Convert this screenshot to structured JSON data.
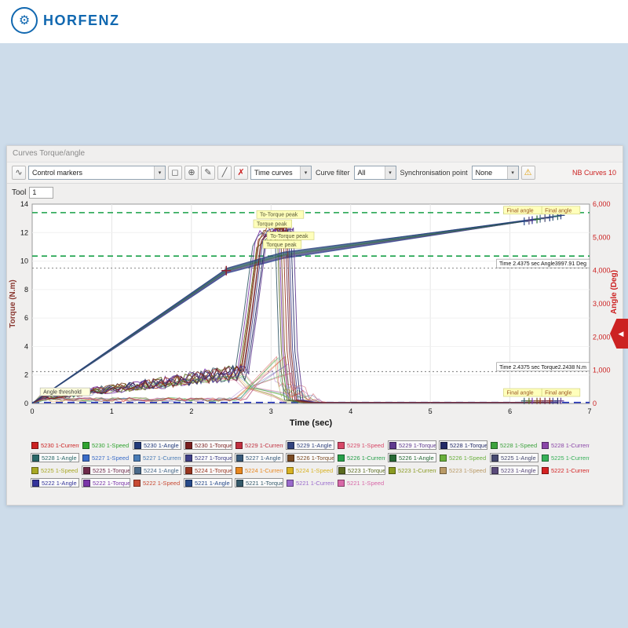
{
  "brand": {
    "name": "HORFENZ",
    "icon": "⚙",
    "color": "#1168b0"
  },
  "window": {
    "title": "Curves Torque/angle",
    "tool_label": "Tool",
    "tool_value": "1",
    "side_tag_arrow": "◀",
    "toolbar": {
      "control_markers": "Control markers",
      "time_curves": "Time curves",
      "curve_filter_label": "Curve filter",
      "curve_filter_value": "All",
      "sync_label": "Synchronisation point",
      "sync_value": "None",
      "nb_curves": "NB Curves 10",
      "icons": {
        "wave": "∿",
        "marquee": "◻",
        "zoom": "⊕",
        "pencil": "✎",
        "line": "╱",
        "delete": "✗",
        "warning": "⚠",
        "arrow": "▾"
      }
    }
  },
  "chart_data": {
    "type": "line",
    "title": "",
    "xlabel": "Time (sec)",
    "x_min": 0,
    "x_max": 7,
    "x_ticks": [
      0,
      1,
      2,
      3,
      4,
      5,
      6,
      7
    ],
    "y_left": {
      "label": "Torque (N.m)",
      "min": 0,
      "max": 14,
      "ticks": [
        0,
        2,
        4,
        6,
        8,
        10,
        12,
        14
      ],
      "color": "#8a3a33"
    },
    "y_right": {
      "label": "Angle (Deg)",
      "min": 0,
      "max": 6000,
      "ticks": [
        0,
        1000,
        2000,
        3000,
        4000,
        5000,
        6000
      ],
      "color": "#cc2222"
    },
    "limits": [
      {
        "name": "torque-max-limit-line",
        "v": 13.4,
        "color": "#18a048",
        "dash": "7 5"
      },
      {
        "name": "torque-min-limit-line",
        "v": 10.35,
        "color": "#18a048",
        "dash": "7 5"
      },
      {
        "name": "angle-baseline-line",
        "v": 0.07,
        "color": "#2233bb",
        "dash": "9 6"
      }
    ],
    "cursors": [
      {
        "v": 9.5,
        "label": "Time 2.4375 sec Angle3997.91 Deg"
      },
      {
        "v": 2.2438,
        "label": "Time 2.4375 sec Torque2.2438 N.m"
      }
    ],
    "cursor_point": {
      "t": 2.4375,
      "v": 9.33
    },
    "peak_labels": [
      {
        "text": "To-Torque peak",
        "t": 2.82,
        "v": 13.05
      },
      {
        "text": "Torque peak",
        "t": 2.78,
        "v": 12.4
      },
      {
        "text": "To-Torque peak",
        "t": 2.95,
        "v": 11.55
      },
      {
        "text": "Torque peak",
        "t": 2.9,
        "v": 10.95
      }
    ],
    "final_labels_top": [
      {
        "text": "Final angle",
        "t": 5.92,
        "v": 13.35
      },
      {
        "text": "Final angle",
        "t": 6.4,
        "v": 13.35
      }
    ],
    "final_labels_bottom": [
      {
        "text": "Final angle",
        "t": 5.92,
        "v": 0.55
      },
      {
        "text": "Final angle",
        "t": 6.4,
        "v": 0.55
      }
    ],
    "threshold_label": {
      "text": "Angle threshold",
      "t": 0.1,
      "v": 0.6
    },
    "bolts": [
      {
        "id": "5221",
        "t_rise": 2.55,
        "peak": 12.0,
        "t_drop": 3.05,
        "t_final": 6.18,
        "final_angle": 5480,
        "torque": "#355a6a",
        "angle": "#274a8a",
        "current": "#9a6acc",
        "speed": "#d868a8"
      },
      {
        "id": "5222",
        "t_rise": 2.58,
        "peak": 12.3,
        "t_drop": 3.1,
        "t_final": 6.28,
        "final_angle": 5520,
        "torque": "#7a35a8",
        "angle": "#34349a",
        "current": "#d42222",
        "speed": "#c84a33"
      },
      {
        "id": "5223",
        "t_rise": 2.6,
        "peak": 11.9,
        "t_drop": 3.08,
        "t_final": 6.24,
        "final_angle": 5500,
        "torque": "#5a6a1f",
        "angle": "#5a4a7a",
        "current": "#8a9a22",
        "speed": "#b99a66"
      },
      {
        "id": "5224",
        "t_rise": 2.62,
        "peak": 12.5,
        "t_drop": 3.15,
        "t_final": 6.38,
        "final_angle": 5560,
        "torque": "#99351f",
        "angle": "#4a6a8a",
        "current": "#e8871f",
        "speed": "#d8b222"
      },
      {
        "id": "5225",
        "t_rise": 2.65,
        "peak": 12.2,
        "t_drop": 3.18,
        "t_final": 6.44,
        "final_angle": 5580,
        "torque": "#6e2a4a",
        "angle": "#474a70",
        "current": "#36b058",
        "speed": "#a8a824"
      },
      {
        "id": "5226",
        "t_rise": 2.63,
        "peak": 12.4,
        "t_drop": 3.12,
        "t_final": 6.34,
        "final_angle": 5540,
        "torque": "#7a4a22",
        "angle": "#276a35",
        "current": "#27a04a",
        "speed": "#6ab03c"
      },
      {
        "id": "5227",
        "t_rise": 2.68,
        "peak": 12.6,
        "t_drop": 3.22,
        "t_final": 6.54,
        "final_angle": 5620,
        "torque": "#3f3f88",
        "angle": "#375a7a",
        "current": "#4a7cb5",
        "speed": "#3a6cc8"
      },
      {
        "id": "5228",
        "t_rise": 2.7,
        "peak": 12.1,
        "t_drop": 3.25,
        "t_final": 6.6,
        "final_angle": 5640,
        "torque": "#232a66",
        "angle": "#2a6868",
        "current": "#8a46a8",
        "speed": "#3da23d"
      },
      {
        "id": "5229",
        "t_rise": 2.72,
        "peak": 12.35,
        "t_drop": 3.28,
        "t_final": 6.64,
        "final_angle": 5660,
        "torque": "#5f3a8f",
        "angle": "#31437f",
        "current": "#c03040",
        "speed": "#d84868"
      },
      {
        "id": "5230",
        "t_rise": 2.66,
        "peak": 12.45,
        "t_drop": 3.2,
        "t_final": 6.5,
        "final_angle": 5600,
        "torque": "#7a1f1f",
        "angle": "#223a7a",
        "current": "#cc2222",
        "speed": "#2fa32f"
      }
    ]
  },
  "legend": {
    "entries": [
      {
        "label": "5230 1-Current",
        "color": "#cc2222",
        "boxed": false
      },
      {
        "label": "5230 1-Speed",
        "color": "#2fa32f",
        "boxed": false
      },
      {
        "label": "5230 1-Angle",
        "color": "#223a7a",
        "boxed": true
      },
      {
        "label": "5230 1-Torque",
        "color": "#7a1f1f",
        "boxed": true
      },
      {
        "label": "5229 1-Current",
        "color": "#c03040",
        "boxed": false
      },
      {
        "label": "5229 1-Angle",
        "color": "#31437f",
        "boxed": true
      },
      {
        "label": "5229 1-Speed",
        "color": "#d84868",
        "boxed": false
      },
      {
        "label": "5229 1-Torque",
        "color": "#5f3a8f",
        "boxed": true
      },
      {
        "label": "5228 1-Torque",
        "color": "#232a66",
        "boxed": true
      },
      {
        "label": "5228 1-Speed",
        "color": "#3da23d",
        "boxed": false
      },
      {
        "label": "5228 1-Current",
        "color": "#8a46a8",
        "boxed": false
      },
      {
        "label": "5228 1-Angle",
        "color": "#2a6868",
        "boxed": true
      },
      {
        "label": "5227 1-Speed",
        "color": "#3a6cc8",
        "boxed": false
      },
      {
        "label": "5227 1-Current",
        "color": "#4a7cb5",
        "boxed": false
      },
      {
        "label": "5227 1-Torque",
        "color": "#3f3f88",
        "boxed": true
      },
      {
        "label": "5227 1-Angle",
        "color": "#375a7a",
        "boxed": true
      },
      {
        "label": "5226 1-Torque",
        "color": "#7a4a22",
        "boxed": true
      },
      {
        "label": "5226 1-Current",
        "color": "#27a04a",
        "boxed": false
      },
      {
        "label": "5226 1-Angle",
        "color": "#276a35",
        "boxed": true
      },
      {
        "label": "5226 1-Speed",
        "color": "#6ab03c",
        "boxed": false
      },
      {
        "label": "5225 1-Angle",
        "color": "#474a70",
        "boxed": true
      },
      {
        "label": "5225 1-Current",
        "color": "#36b058",
        "boxed": false
      },
      {
        "label": "5225 1-Speed",
        "color": "#a8a824",
        "boxed": false
      },
      {
        "label": "5225 1-Torque",
        "color": "#6e2a4a",
        "boxed": true
      },
      {
        "label": "5224 1-Angle",
        "color": "#4a6a8a",
        "boxed": true
      },
      {
        "label": "5224 1-Torque",
        "color": "#99351f",
        "boxed": true
      },
      {
        "label": "5224 1-Current",
        "color": "#e8871f",
        "boxed": false
      },
      {
        "label": "5224 1-Speed",
        "color": "#d8b222",
        "boxed": false
      },
      {
        "label": "5223 1-Torque",
        "color": "#5a6a1f",
        "boxed": true
      },
      {
        "label": "5223 1-Current",
        "color": "#8a9a22",
        "boxed": false
      },
      {
        "label": "5223 1-Speed",
        "color": "#b99a66",
        "boxed": false
      },
      {
        "label": "5223 1-Angle",
        "color": "#5a4a7a",
        "boxed": true
      },
      {
        "label": "5222 1-Current",
        "color": "#d42222",
        "boxed": false
      },
      {
        "label": "5222 1-Angle",
        "color": "#34349a",
        "boxed": true
      },
      {
        "label": "5222 1-Torque",
        "color": "#7a35a8",
        "boxed": true
      },
      {
        "label": "5222 1-Speed",
        "color": "#c84a33",
        "boxed": false
      },
      {
        "label": "5221 1-Angle",
        "color": "#274a8a",
        "boxed": true
      },
      {
        "label": "5221 1-Torque",
        "color": "#355a6a",
        "boxed": true
      },
      {
        "label": "5221 1-Current",
        "color": "#9a6acc",
        "boxed": false
      },
      {
        "label": "5221 1-Speed",
        "color": "#d868a8",
        "boxed": false
      }
    ]
  }
}
